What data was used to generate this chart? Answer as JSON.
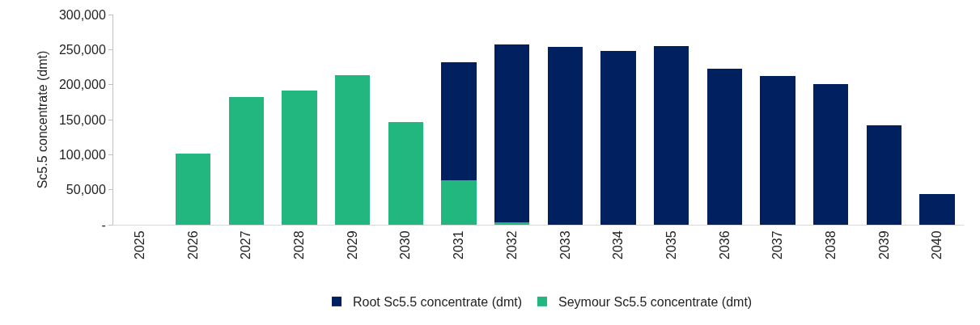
{
  "chart_data": {
    "type": "bar",
    "stacked": true,
    "ylabel": "Sc5.5 concentrate (dmt)",
    "categories": [
      "2025",
      "2026",
      "2027",
      "2028",
      "2029",
      "2030",
      "2031",
      "2032",
      "2033",
      "2034",
      "2035",
      "2036",
      "2037",
      "2038",
      "2039",
      "2040"
    ],
    "series": [
      {
        "name": "Seymour Sc5.5 concentrate (dmt)",
        "color": "#21b77e",
        "values": [
          null,
          101000,
          182000,
          191000,
          214000,
          147000,
          63000,
          3000,
          null,
          null,
          null,
          null,
          null,
          null,
          null,
          null
        ]
      },
      {
        "name": "Root Sc5.5 concentrate (dmt)",
        "color": "#002060",
        "values": [
          null,
          null,
          null,
          null,
          null,
          null,
          169000,
          254000,
          254000,
          248000,
          255000,
          223000,
          212000,
          201000,
          142000,
          44000
        ]
      }
    ],
    "ylim": [
      0,
      300000
    ],
    "yticks": [
      {
        "value": 0,
        "label": "-"
      },
      {
        "value": 50000,
        "label": "50,000"
      },
      {
        "value": 100000,
        "label": "100,000"
      },
      {
        "value": 150000,
        "label": "150,000"
      },
      {
        "value": 200000,
        "label": "200,000"
      },
      {
        "value": 250000,
        "label": "250,000"
      },
      {
        "value": 300000,
        "label": "300,000"
      }
    ],
    "grid": false,
    "legend": "bottom"
  }
}
